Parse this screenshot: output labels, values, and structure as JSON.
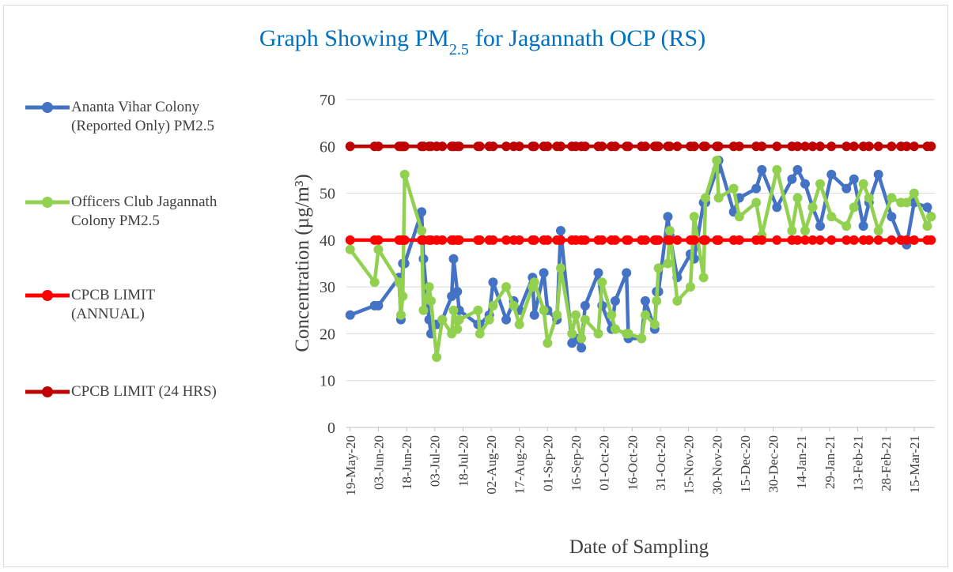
{
  "chart_data": {
    "type": "line",
    "title": [
      "Graph Showing PM",
      "2.5",
      "for Jagannath OCP  (RS)"
    ],
    "x_label": "Date of Sampling",
    "y_label": "Concentration (µg/m³)",
    "x": [
      "2020-05-19",
      "2020-06-01",
      "2020-06-03",
      "2020-06-14",
      "2020-06-15",
      "2020-06-16",
      "2020-06-17",
      "2020-06-26",
      "2020-06-27",
      "2020-06-30",
      "2020-07-01",
      "2020-07-04",
      "2020-07-07",
      "2020-07-12",
      "2020-07-13",
      "2020-07-15",
      "2020-07-16",
      "2020-07-26",
      "2020-07-27",
      "2020-08-01",
      "2020-08-03",
      "2020-08-10",
      "2020-08-14",
      "2020-08-17",
      "2020-08-24",
      "2020-08-25",
      "2020-08-30",
      "2020-09-01",
      "2020-09-06",
      "2020-09-08",
      "2020-09-14",
      "2020-09-16",
      "2020-09-19",
      "2020-09-21",
      "2020-09-28",
      "2020-09-30",
      "2020-10-05",
      "2020-10-07",
      "2020-10-13",
      "2020-10-14",
      "2020-10-21",
      "2020-10-23",
      "2020-10-28",
      "2020-10-29",
      "2020-10-30",
      "2020-11-04",
      "2020-11-05",
      "2020-11-09",
      "2020-11-16",
      "2020-11-18",
      "2020-11-23",
      "2020-11-24",
      "2020-11-30",
      "2020-12-01",
      "2020-12-09",
      "2020-12-12",
      "2020-12-21",
      "2020-12-24",
      "2021-01-01",
      "2021-01-09",
      "2021-01-12",
      "2021-01-16",
      "2021-01-20",
      "2021-01-24",
      "2021-01-30",
      "2021-02-07",
      "2021-02-11",
      "2021-02-16",
      "2021-02-19",
      "2021-02-24",
      "2021-03-03",
      "2021-03-08",
      "2021-03-11",
      "2021-03-15",
      "2021-03-22",
      "2021-03-24"
    ],
    "series": [
      {
        "name": "Ananta Vihar Colony (Reported Only) PM2.5",
        "color": "#4472c4",
        "values": [
          24,
          26,
          26,
          32,
          23,
          35,
          35,
          46,
          36,
          23,
          20,
          22,
          23,
          28,
          36,
          29,
          25,
          22,
          22,
          24,
          31,
          23,
          27,
          25,
          32,
          24,
          33,
          25,
          23,
          42,
          18,
          19,
          17,
          26,
          33,
          26,
          21,
          27,
          33,
          19,
          19,
          27,
          21,
          29,
          29,
          45,
          41,
          32,
          37,
          36,
          48,
          48,
          55,
          57,
          46,
          49,
          51,
          55,
          47,
          53,
          55,
          52,
          47,
          43,
          54,
          51,
          53,
          43,
          48,
          54,
          45,
          40,
          39,
          48,
          47,
          45
        ]
      },
      {
        "name": "Officers Club Jagannath Colony PM2.5",
        "color": "#92d050",
        "values": [
          38,
          31,
          38,
          31,
          24,
          28,
          54,
          42,
          25,
          30,
          27,
          15,
          23,
          20,
          25,
          21,
          23,
          25,
          20,
          23,
          26,
          30,
          26,
          22,
          30,
          31,
          25,
          18,
          24,
          34,
          20,
          24,
          19,
          23,
          20,
          31,
          24,
          21,
          20,
          20,
          19,
          24,
          22,
          27,
          34,
          35,
          42,
          27,
          30,
          45,
          32,
          49,
          57,
          49,
          51,
          45,
          48,
          41,
          55,
          42,
          49,
          42,
          47,
          52,
          45,
          43,
          47,
          52,
          49,
          42,
          49,
          48,
          48,
          50,
          43,
          45
        ]
      },
      {
        "name": "CPCB LIMIT (ANNUAL)",
        "color": "#ff0000",
        "values": [
          40,
          40,
          40,
          40,
          40,
          40,
          40,
          40,
          40,
          40,
          40,
          40,
          40,
          40,
          40,
          40,
          40,
          40,
          40,
          40,
          40,
          40,
          40,
          40,
          40,
          40,
          40,
          40,
          40,
          40,
          40,
          40,
          40,
          40,
          40,
          40,
          40,
          40,
          40,
          40,
          40,
          40,
          40,
          40,
          40,
          40,
          40,
          40,
          40,
          40,
          40,
          40,
          40,
          40,
          40,
          40,
          40,
          40,
          40,
          40,
          40,
          40,
          40,
          40,
          40,
          40,
          40,
          40,
          40,
          40,
          40,
          40,
          40,
          40,
          40,
          40
        ]
      },
      {
        "name": "CPCB LIMIT (24 HRS)",
        "color": "#c00000",
        "values": [
          60,
          60,
          60,
          60,
          60,
          60,
          60,
          60,
          60,
          60,
          60,
          60,
          60,
          60,
          60,
          60,
          60,
          60,
          60,
          60,
          60,
          60,
          60,
          60,
          60,
          60,
          60,
          60,
          60,
          60,
          60,
          60,
          60,
          60,
          60,
          60,
          60,
          60,
          60,
          60,
          60,
          60,
          60,
          60,
          60,
          60,
          60,
          60,
          60,
          60,
          60,
          60,
          60,
          60,
          60,
          60,
          60,
          60,
          60,
          60,
          60,
          60,
          60,
          60,
          60,
          60,
          60,
          60,
          60,
          60,
          60,
          60,
          60,
          60,
          60,
          60
        ]
      }
    ],
    "xlim": [
      "2020-05-17",
      "2021-03-26"
    ],
    "xticks": [
      {
        "value": "2020-05-19",
        "label": "19-May-20"
      },
      {
        "value": "2020-06-03",
        "label": "03-Jun-20"
      },
      {
        "value": "2020-06-18",
        "label": "18-Jun-20"
      },
      {
        "value": "2020-07-03",
        "label": "03-Jul-20"
      },
      {
        "value": "2020-07-18",
        "label": "18-Jul-20"
      },
      {
        "value": "2020-08-02",
        "label": "02-Aug-20"
      },
      {
        "value": "2020-08-17",
        "label": "17-Aug-20"
      },
      {
        "value": "2020-09-01",
        "label": "01-Sep-20"
      },
      {
        "value": "2020-09-16",
        "label": "16-Sep-20"
      },
      {
        "value": "2020-10-01",
        "label": "01-Oct-20"
      },
      {
        "value": "2020-10-16",
        "label": "16-Oct-20"
      },
      {
        "value": "2020-10-31",
        "label": "31-Oct-20"
      },
      {
        "value": "2020-11-15",
        "label": "15-Nov-20"
      },
      {
        "value": "2020-11-30",
        "label": "30-Nov-20"
      },
      {
        "value": "2020-12-15",
        "label": "15-Dec-20"
      },
      {
        "value": "2020-12-30",
        "label": "30-Dec-20"
      },
      {
        "value": "2021-01-14",
        "label": "14-Jan-21"
      },
      {
        "value": "2021-01-29",
        "label": "29-Jan-21"
      },
      {
        "value": "2021-02-13",
        "label": "13-Feb-21"
      },
      {
        "value": "2021-02-28",
        "label": "28-Feb-21"
      },
      {
        "value": "2021-03-15",
        "label": "15-Mar-21"
      }
    ],
    "ylim": [
      0,
      70
    ],
    "yticks": [
      0,
      10,
      20,
      30,
      40,
      50,
      60,
      70
    ],
    "grid": true,
    "legend": "left"
  }
}
